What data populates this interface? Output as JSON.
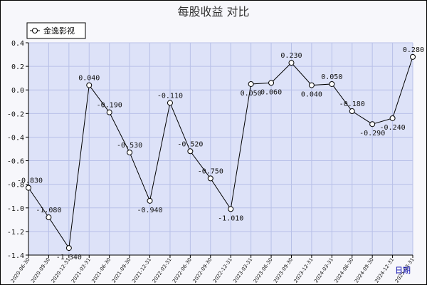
{
  "chart_data": {
    "type": "line",
    "title": "每股收益  对比",
    "xlabel": "日期",
    "ylabel": "",
    "ylim": [
      -1.4,
      0.4
    ],
    "yticks": [
      0.4,
      0.2,
      0.0,
      -0.2,
      -0.4,
      -0.6,
      -0.8,
      -1.0,
      -1.2,
      -1.4
    ],
    "ytick_labels": [
      "0.4",
      "0.2",
      "0.0",
      "-0.2",
      "-0.4",
      "-0.6",
      "-0.8",
      "-1.0",
      "-1.2",
      "-1.4"
    ],
    "legend_position": "top-left",
    "grid": true,
    "x": [
      "2020-06-30",
      "2020-09-30",
      "2020-12-31",
      "2021-03-31",
      "2021-06-30",
      "2021-09-30",
      "2021-12-31",
      "2022-03-31",
      "2022-06-30",
      "2022-09-30",
      "2022-12-31",
      "2023-03-31",
      "2023-06-30",
      "2023-09-30",
      "2023-12-31",
      "2024-03-31",
      "2024-06-30",
      "2024-09-30",
      "2024-12-31",
      "2025-03-31"
    ],
    "series": [
      {
        "name": "金逸影视",
        "color": "#000000",
        "values": [
          -0.83,
          -1.08,
          -1.34,
          0.04,
          -0.19,
          -0.53,
          -0.94,
          -0.11,
          -0.52,
          -0.75,
          -1.01,
          0.05,
          0.06,
          0.23,
          0.04,
          0.05,
          -0.18,
          -0.29,
          -0.24,
          0.28
        ],
        "labels": [
          "-0.830",
          "-1.080",
          "-1.340",
          "0.040",
          "-0.190",
          "-0.530",
          "-0.940",
          "-0.110",
          "-0.520",
          "-0.750",
          "-1.010",
          "0.050",
          "0.060",
          "0.230",
          "0.040",
          "0.050",
          "-0.180",
          "-0.290",
          "-0.240",
          "0.280"
        ]
      }
    ]
  },
  "colors": {
    "plot_bg": "#dde2f8",
    "grid": "#b8c0e8",
    "line": "#000000"
  }
}
